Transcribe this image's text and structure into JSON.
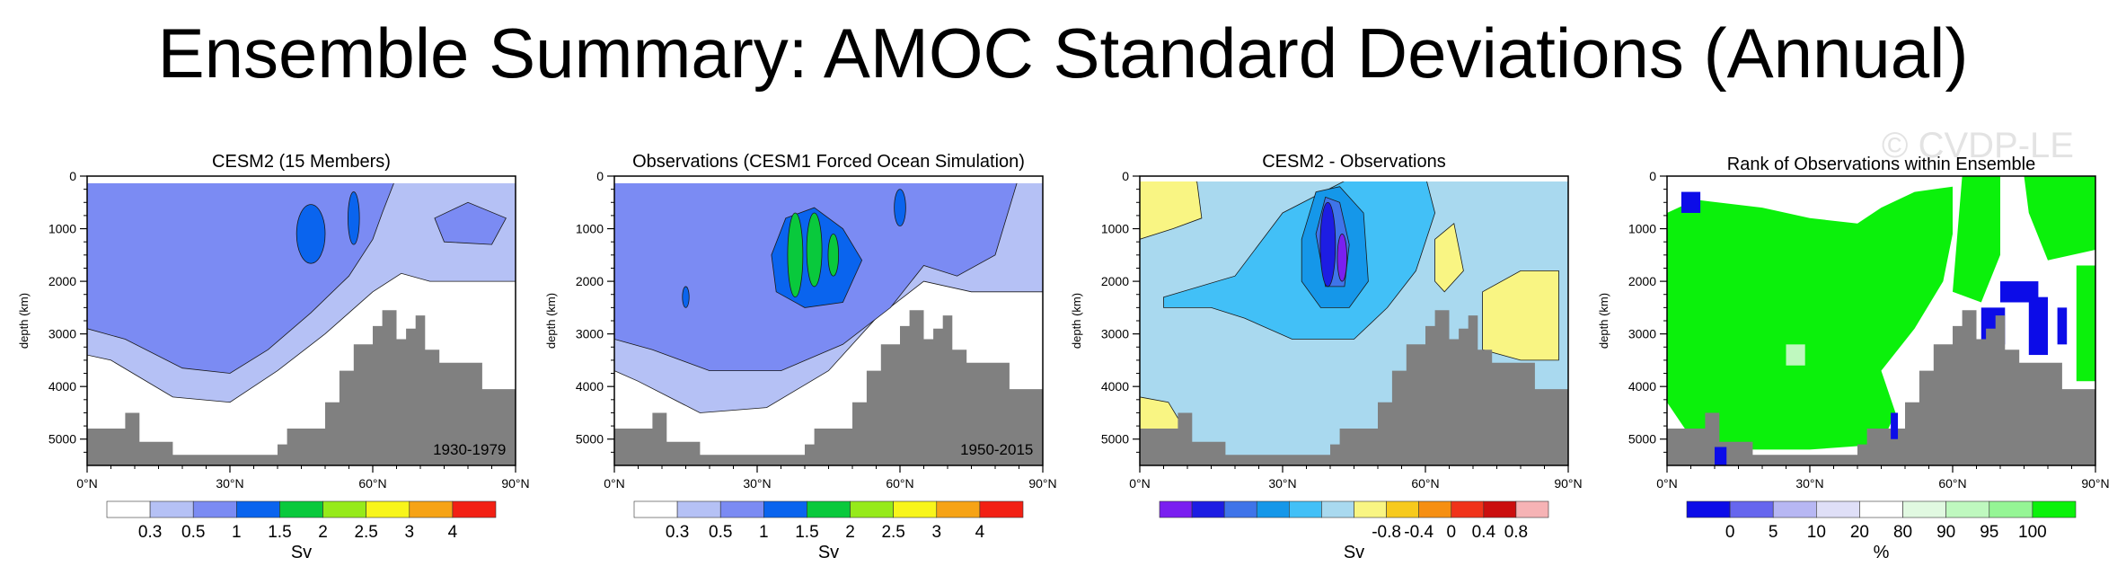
{
  "title": "Ensemble Summary: AMOC Standard Deviations (Annual)",
  "watermark": "© CVDP-LE",
  "colors": {
    "terrain": "#808080",
    "ylw": "#f9f583",
    "std": [
      "#ffffff",
      "#b5c1f5",
      "#7b8bf3",
      "#0a64ee",
      "#09c93c",
      "#96ea1a",
      "#f8f51b",
      "#f6a316",
      "#f22014"
    ],
    "diff": [
      "#7a1ff0",
      "#1d1de3",
      "#3f74e9",
      "#1597e9",
      "#42c0f7",
      "#a9d9ef",
      "#f9f583",
      "#f7ca1d",
      "#f68f12",
      "#f0331a",
      "#cb0f0f",
      "#f6b3b5"
    ],
    "rank": [
      "#0c0ce8",
      "#6666ee",
      "#b7b7f3",
      "#dfdff7",
      "#ffffff",
      "#e1f9e1",
      "#bff8bf",
      "#95f595",
      "#0bf10b"
    ]
  },
  "chart_data": [
    {
      "type": "contour",
      "title": "CESM2 (15 Members)",
      "xlabel": "",
      "ylabel": "depth (km)",
      "xticks": [
        "0°N",
        "30°N",
        "60°N",
        "90°N"
      ],
      "yticks": [
        "0",
        "1000",
        "2000",
        "3000",
        "4000",
        "5000"
      ],
      "xlim": [
        0,
        90
      ],
      "ylim": [
        5500,
        0
      ],
      "period": "1930-1979",
      "colorbar": {
        "labels": [
          "0.3",
          "0.5",
          "1",
          "1.5",
          "2",
          "2.5",
          "3",
          "4"
        ],
        "units": "Sv"
      }
    },
    {
      "type": "contour",
      "title": "Observations (CESM1 Forced Ocean Simulation)",
      "xlabel": "",
      "ylabel": "depth (km)",
      "xticks": [
        "0°N",
        "30°N",
        "60°N",
        "90°N"
      ],
      "yticks": [
        "0",
        "1000",
        "2000",
        "3000",
        "4000",
        "5000"
      ],
      "xlim": [
        0,
        90
      ],
      "ylim": [
        5500,
        0
      ],
      "period": "1950-2015",
      "colorbar": {
        "labels": [
          "0.3",
          "0.5",
          "1",
          "1.5",
          "2",
          "2.5",
          "3",
          "4"
        ],
        "units": "Sv"
      }
    },
    {
      "type": "contour",
      "title": "CESM2 - Observations",
      "xlabel": "",
      "ylabel": "depth (km)",
      "xticks": [
        "0°N",
        "30°N",
        "60°N",
        "90°N"
      ],
      "yticks": [
        "0",
        "1000",
        "2000",
        "3000",
        "4000",
        "5000"
      ],
      "xlim": [
        0,
        90
      ],
      "ylim": [
        5500,
        0
      ],
      "colorbar": {
        "labels": [
          "-0.8",
          "-0.4",
          "0",
          "0.4",
          "0.8"
        ],
        "units": "Sv"
      }
    },
    {
      "type": "heatmap",
      "title": "Rank of Observations within Ensemble",
      "xlabel": "",
      "ylabel": "depth (km)",
      "xticks": [
        "0°N",
        "30°N",
        "60°N",
        "90°N"
      ],
      "yticks": [
        "0",
        "1000",
        "2000",
        "3000",
        "4000",
        "5000"
      ],
      "xlim": [
        0,
        90
      ],
      "ylim": [
        5500,
        0
      ],
      "colorbar": {
        "labels": [
          "0",
          "5",
          "10",
          "20",
          "80",
          "90",
          "95",
          "100"
        ],
        "units": "%"
      }
    }
  ]
}
